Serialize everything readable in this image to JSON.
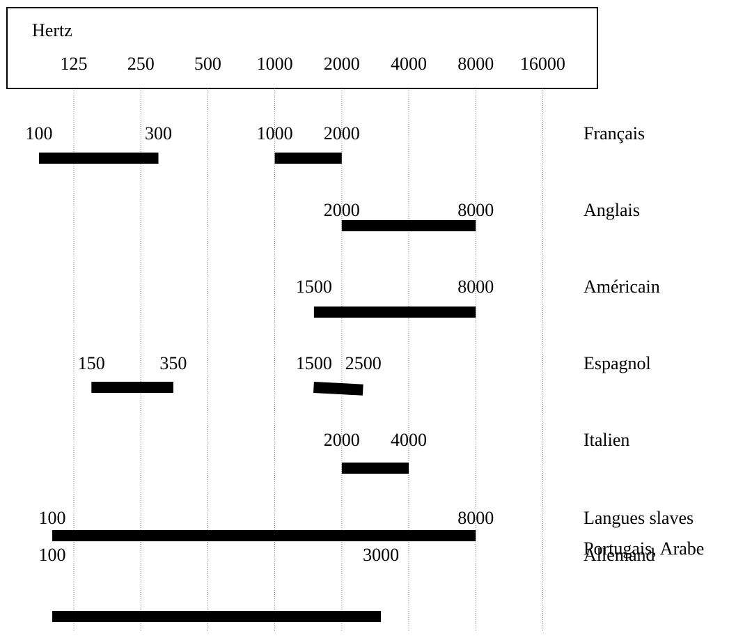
{
  "chart_data": {
    "type": "bar",
    "subtype": "range-gantt",
    "axis": {
      "unit_label": "Hertz",
      "scale": "log2",
      "ticks": [
        125,
        250,
        500,
        1000,
        2000,
        4000,
        8000,
        16000
      ],
      "tick_labels": [
        "125",
        "250",
        "500",
        "1000",
        "2000",
        "4000",
        "8000",
        "16000"
      ],
      "xlim": [
        100,
        16000
      ],
      "grid": "vertical dotted lines at each tick"
    },
    "rows": [
      {
        "language": "Français",
        "segments": [
          {
            "from": 100,
            "to": 300,
            "label_from": "100",
            "label_to": "300"
          },
          {
            "from": 1000,
            "to": 2000,
            "label_from": "1000",
            "label_to": "2000"
          }
        ]
      },
      {
        "language": "Anglais",
        "segments": [
          {
            "from": 2000,
            "to": 8000,
            "label_from": "2000",
            "label_to": "8000"
          }
        ]
      },
      {
        "language": "Américain",
        "segments": [
          {
            "from": 1500,
            "to": 8000,
            "label_from": "1500",
            "label_to": "8000"
          }
        ]
      },
      {
        "language": "Espagnol",
        "segments": [
          {
            "from": 150,
            "to": 350,
            "label_from": "150",
            "label_to": "350"
          },
          {
            "from": 1500,
            "to": 2500,
            "label_from": "1500",
            "label_to": "2500"
          }
        ]
      },
      {
        "language": "Italien",
        "segments": [
          {
            "from": 2000,
            "to": 4000,
            "label_from": "2000",
            "label_to": "4000"
          }
        ]
      },
      {
        "language": "Langues slaves",
        "language_line2": "Portugais, Arabe",
        "segments": [
          {
            "from": 100,
            "to": 8000,
            "label_from": "100",
            "label_to": "8000"
          }
        ]
      },
      {
        "language": "Allemand",
        "segments": [
          {
            "from": 100,
            "to": 3000,
            "label_from": "100",
            "label_to": "3000"
          }
        ]
      }
    ]
  },
  "colors": {
    "bar": "#000000",
    "grid": "#7a7a7a",
    "frame": "#000000",
    "text": "#000000",
    "background": "#ffffff"
  }
}
